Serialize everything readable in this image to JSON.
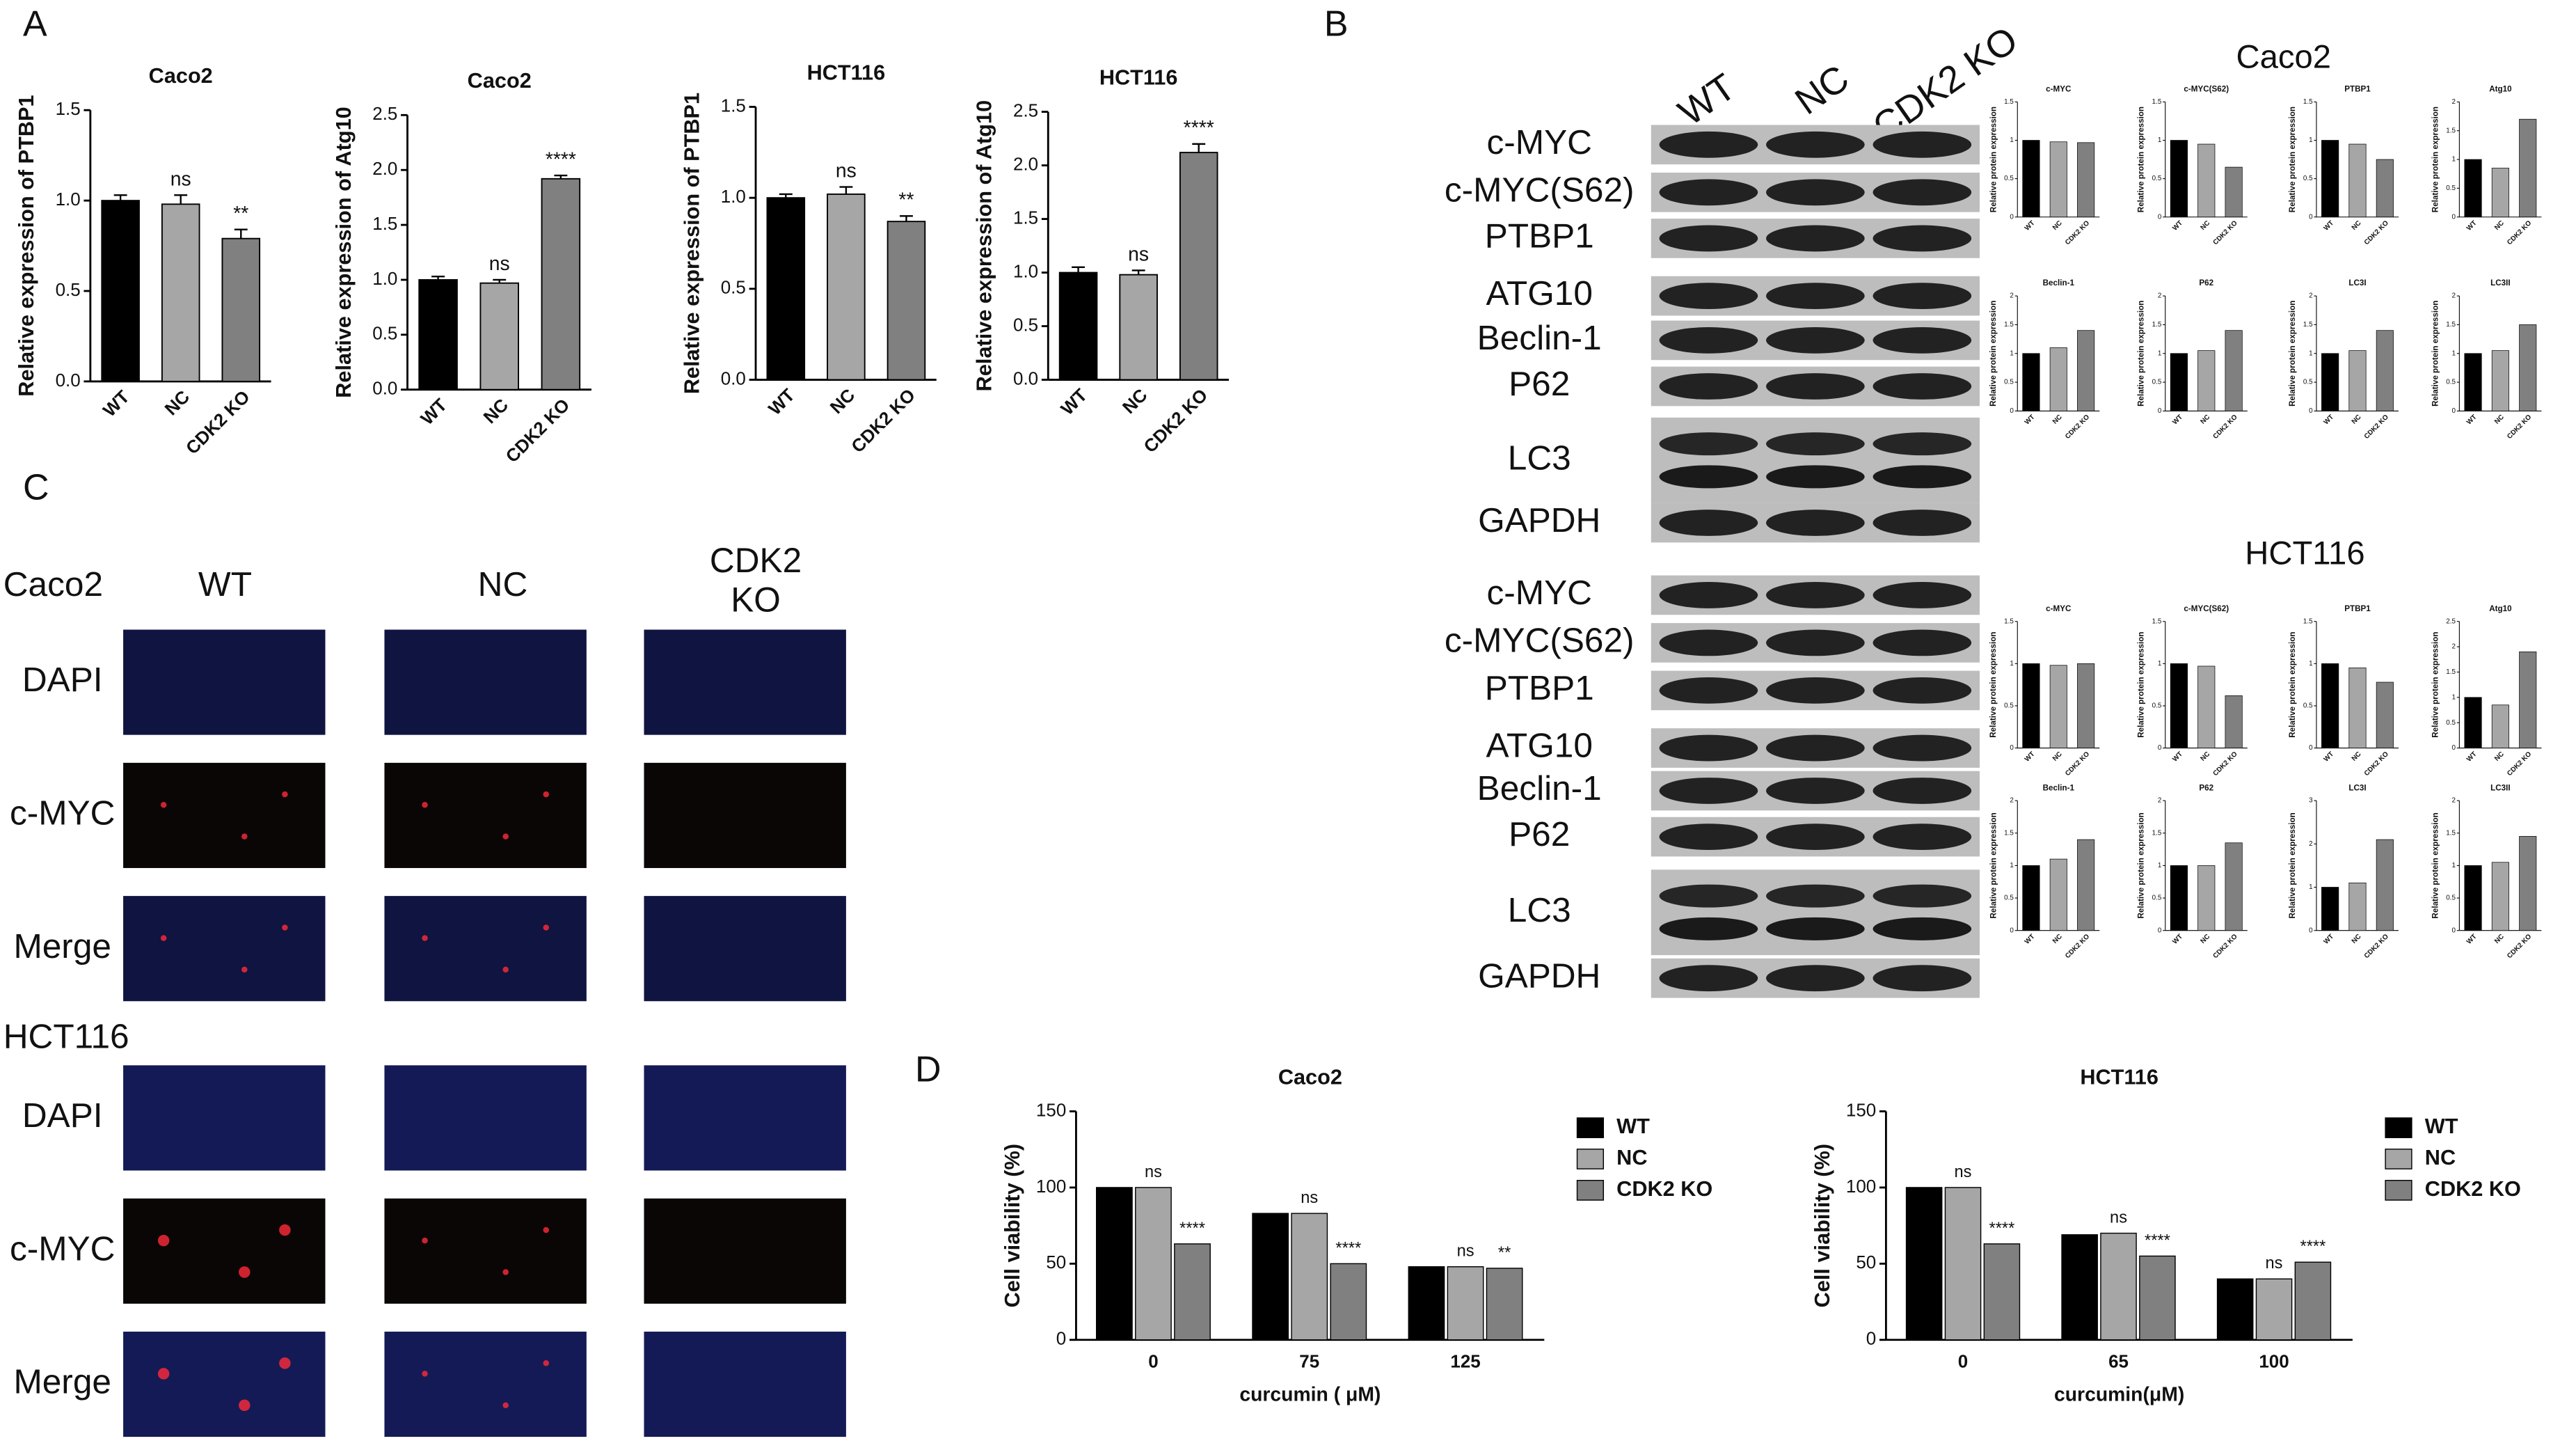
{
  "panel_labels": [
    "A",
    "B",
    "C",
    "D"
  ],
  "chart_data": [
    {
      "type": "bar",
      "title": "Caco2",
      "y_label": "Relative expression of PTBP1",
      "categories": [
        "WT",
        "NC",
        "CDK2 KO"
      ],
      "values": [
        1.0,
        0.98,
        0.79
      ],
      "errors": [
        0.03,
        0.05,
        0.05
      ],
      "annotations": [
        null,
        "ns",
        "**"
      ],
      "colors": [
        "#000000",
        "#a6a6a6",
        "#808080"
      ],
      "ylim": [
        0,
        1.5
      ],
      "yticks": [
        {
          "value": 0,
          "label": "0.0"
        },
        0.5,
        {
          "value": 1,
          "label": "1.0"
        },
        1.5
      ]
    },
    {
      "type": "bar",
      "title": "Caco2",
      "y_label": "Relative expression of Atg10",
      "categories": [
        "WT",
        "NC",
        "CDK2 KO"
      ],
      "values": [
        1.0,
        0.97,
        1.92
      ],
      "errors": [
        0.03,
        0.03,
        0.03
      ],
      "annotations": [
        null,
        "ns",
        "****"
      ],
      "colors": [
        "#000000",
        "#a6a6a6",
        "#808080"
      ],
      "ylim": [
        0,
        2.5
      ],
      "yticks": [
        {
          "value": 0,
          "label": "0.0"
        },
        0.5,
        {
          "value": 1,
          "label": "1.0"
        },
        1.5,
        {
          "value": 2,
          "label": "2.0"
        },
        2.5
      ]
    },
    {
      "type": "bar",
      "title": "HCT116",
      "y_label": "Relative expression of PTBP1",
      "categories": [
        "WT",
        "NC",
        "CDK2 KO"
      ],
      "values": [
        1.0,
        1.02,
        0.87
      ],
      "errors": [
        0.02,
        0.04,
        0.03
      ],
      "annotations": [
        null,
        "ns",
        "**"
      ],
      "colors": [
        "#000000",
        "#a6a6a6",
        "#808080"
      ],
      "ylim": [
        0,
        1.5
      ],
      "yticks": [
        {
          "value": 0,
          "label": "0.0"
        },
        0.5,
        {
          "value": 1,
          "label": "1.0"
        },
        1.5
      ]
    },
    {
      "type": "bar",
      "title": "HCT116",
      "y_label": "Relative expression of Atg10",
      "categories": [
        "WT",
        "NC",
        "CDK2 KO"
      ],
      "values": [
        1.0,
        0.98,
        2.12
      ],
      "errors": [
        0.05,
        0.04,
        0.08
      ],
      "annotations": [
        null,
        "ns",
        "****"
      ],
      "colors": [
        "#000000",
        "#a6a6a6",
        "#808080"
      ],
      "ylim": [
        0,
        2.5
      ],
      "yticks": [
        {
          "value": 0,
          "label": "0.0"
        },
        0.5,
        {
          "value": 1,
          "label": "1.0"
        },
        1.5,
        {
          "value": 2,
          "label": "2.0"
        },
        2.5
      ]
    },
    {
      "type": "bar",
      "title": "Caco2",
      "y_label": "Cell viability (%)",
      "x_label": "curcumin ( μM)",
      "categories": [
        "0",
        "75",
        "125"
      ],
      "legend": "right",
      "series": [
        {
          "name": "WT",
          "color": "#000000",
          "values": [
            100,
            83,
            48
          ]
        },
        {
          "name": "NC",
          "color": "#a6a6a6",
          "values": [
            100,
            83,
            48
          ],
          "annotations": [
            "ns",
            "ns",
            "ns"
          ]
        },
        {
          "name": "CDK2 KO",
          "color": "#808080",
          "values": [
            63,
            50,
            47
          ],
          "annotations": [
            "****",
            "****",
            "**"
          ]
        }
      ],
      "ylim": [
        0,
        150
      ],
      "yticks": [
        0,
        50,
        100,
        150
      ]
    },
    {
      "type": "bar",
      "title": "HCT116",
      "y_label": "Cell viability (%)",
      "x_label": "curcumin(μM)",
      "categories": [
        "0",
        "65",
        "100"
      ],
      "legend": "right",
      "series": [
        {
          "name": "WT",
          "color": "#000000",
          "values": [
            100,
            69,
            40
          ]
        },
        {
          "name": "NC",
          "color": "#a6a6a6",
          "values": [
            100,
            70,
            40
          ],
          "annotations": [
            "ns",
            "ns",
            "ns"
          ]
        },
        {
          "name": "CDK2 KO",
          "color": "#808080",
          "values": [
            63,
            55,
            51
          ],
          "annotations": [
            "****",
            "****",
            "****"
          ]
        }
      ],
      "ylim": [
        0,
        150
      ],
      "yticks": [
        0,
        50,
        100,
        150
      ]
    },
    {
      "type": "bar",
      "title": "c-MYC",
      "y_label": "Relative protein expression",
      "categories": [
        "WT",
        "NC",
        "CDK2 KO"
      ],
      "values": [
        1.0,
        0.98,
        0.97
      ],
      "colors": [
        "#000000",
        "#a6a6a6",
        "#808080"
      ],
      "ylim": [
        0,
        1.5
      ],
      "yticks": [
        0,
        0.5,
        1,
        1.5
      ]
    },
    {
      "type": "bar",
      "title": "c-MYC(S62)",
      "y_label": "Relative protein expression",
      "categories": [
        "WT",
        "NC",
        "CDK2 KO"
      ],
      "values": [
        1.0,
        0.95,
        0.65
      ],
      "colors": [
        "#000000",
        "#a6a6a6",
        "#808080"
      ],
      "ylim": [
        0,
        1.5
      ],
      "yticks": [
        0,
        0.5,
        1,
        1.5
      ]
    },
    {
      "type": "bar",
      "title": "PTBP1",
      "y_label": "Relative protein expression",
      "categories": [
        "WT",
        "NC",
        "CDK2 KO"
      ],
      "values": [
        1.0,
        0.95,
        0.75
      ],
      "colors": [
        "#000000",
        "#a6a6a6",
        "#808080"
      ],
      "ylim": [
        0,
        1.5
      ],
      "yticks": [
        0,
        0.5,
        1,
        1.5
      ]
    },
    {
      "type": "bar",
      "title": "Atg10",
      "y_label": "Relative protein expression",
      "categories": [
        "WT",
        "NC",
        "CDK2 KO"
      ],
      "values": [
        1.0,
        0.85,
        1.7
      ],
      "colors": [
        "#000000",
        "#a6a6a6",
        "#808080"
      ],
      "ylim": [
        0,
        2
      ],
      "yticks": [
        0,
        0.5,
        1,
        1.5,
        2
      ]
    },
    {
      "type": "bar",
      "title": "Beclin-1",
      "y_label": "Relative protein expression",
      "categories": [
        "WT",
        "NC",
        "CDK2 KO"
      ],
      "values": [
        1.0,
        1.1,
        1.4
      ],
      "colors": [
        "#000000",
        "#a6a6a6",
        "#808080"
      ],
      "ylim": [
        0,
        2
      ],
      "yticks": [
        0,
        0.5,
        1,
        1.5,
        2
      ]
    },
    {
      "type": "bar",
      "title": "P62",
      "y_label": "Relative protein expression",
      "categories": [
        "WT",
        "NC",
        "CDK2 KO"
      ],
      "values": [
        1.0,
        1.05,
        1.4
      ],
      "colors": [
        "#000000",
        "#a6a6a6",
        "#808080"
      ],
      "ylim": [
        0,
        2
      ],
      "yticks": [
        0,
        0.5,
        1,
        1.5,
        2
      ]
    },
    {
      "type": "bar",
      "title": "LC3I",
      "y_label": "Relative protein expression",
      "categories": [
        "WT",
        "NC",
        "CDK2 KO"
      ],
      "values": [
        1.0,
        1.05,
        1.4
      ],
      "colors": [
        "#000000",
        "#a6a6a6",
        "#808080"
      ],
      "ylim": [
        0,
        2
      ],
      "yticks": [
        0,
        0.5,
        1,
        1.5,
        2
      ]
    },
    {
      "type": "bar",
      "title": "LC3II",
      "y_label": "Relative protein expression",
      "categories": [
        "WT",
        "NC",
        "CDK2 KO"
      ],
      "values": [
        1.0,
        1.05,
        1.5
      ],
      "colors": [
        "#000000",
        "#a6a6a6",
        "#808080"
      ],
      "ylim": [
        0,
        2
      ],
      "yticks": [
        0,
        0.5,
        1,
        1.5,
        2
      ]
    },
    {
      "type": "bar",
      "title": "c-MYC",
      "y_label": "Relative protein expression",
      "categories": [
        "WT",
        "NC",
        "CDK2 KO"
      ],
      "values": [
        1.0,
        0.98,
        1.0
      ],
      "colors": [
        "#000000",
        "#a6a6a6",
        "#808080"
      ],
      "ylim": [
        0,
        1.5
      ],
      "yticks": [
        0,
        0.5,
        1,
        1.5
      ]
    },
    {
      "type": "bar",
      "title": "c-MYC(S62)",
      "y_label": "Relative protein expression",
      "categories": [
        "WT",
        "NC",
        "CDK2 KO"
      ],
      "values": [
        1.0,
        0.97,
        0.62
      ],
      "colors": [
        "#000000",
        "#a6a6a6",
        "#808080"
      ],
      "ylim": [
        0,
        1.5
      ],
      "yticks": [
        0,
        0.5,
        1,
        1.5
      ]
    },
    {
      "type": "bar",
      "title": "PTBP1",
      "y_label": "Relative protein expression",
      "categories": [
        "WT",
        "NC",
        "CDK2 KO"
      ],
      "values": [
        1.0,
        0.95,
        0.78
      ],
      "colors": [
        "#000000",
        "#a6a6a6",
        "#808080"
      ],
      "ylim": [
        0,
        1.5
      ],
      "yticks": [
        0,
        0.5,
        1,
        1.5
      ]
    },
    {
      "type": "bar",
      "title": "Atg10",
      "y_label": "Relative protein expression",
      "categories": [
        "WT",
        "NC",
        "CDK2 KO"
      ],
      "values": [
        1.0,
        0.85,
        1.9
      ],
      "colors": [
        "#000000",
        "#a6a6a6",
        "#808080"
      ],
      "ylim": [
        0,
        2.5
      ],
      "yticks": [
        0,
        0.5,
        1,
        1.5,
        2,
        2.5
      ]
    },
    {
      "type": "bar",
      "title": "Beclin-1",
      "y_label": "Relative protein expression",
      "categories": [
        "WT",
        "NC",
        "CDK2 KO"
      ],
      "values": [
        1.0,
        1.1,
        1.4
      ],
      "colors": [
        "#000000",
        "#a6a6a6",
        "#808080"
      ],
      "ylim": [
        0,
        2
      ],
      "yticks": [
        0,
        0.5,
        1,
        1.5,
        2
      ]
    },
    {
      "type": "bar",
      "title": "P62",
      "y_label": "Relative protein expression",
      "categories": [
        "WT",
        "NC",
        "CDK2 KO"
      ],
      "values": [
        1.0,
        1.0,
        1.35
      ],
      "colors": [
        "#000000",
        "#a6a6a6",
        "#808080"
      ],
      "ylim": [
        0,
        2
      ],
      "yticks": [
        0,
        0.5,
        1,
        1.5,
        2
      ]
    },
    {
      "type": "bar",
      "title": "LC3I",
      "y_label": "Relative protein expression",
      "categories": [
        "WT",
        "NC",
        "CDK2 KO"
      ],
      "values": [
        1.0,
        1.1,
        2.1
      ],
      "colors": [
        "#000000",
        "#a6a6a6",
        "#808080"
      ],
      "ylim": [
        0,
        3
      ],
      "yticks": [
        0,
        1,
        2,
        3
      ]
    },
    {
      "type": "bar",
      "title": "LC3II",
      "y_label": "Relative protein expression",
      "categories": [
        "WT",
        "NC",
        "CDK2 KO"
      ],
      "values": [
        1.0,
        1.05,
        1.45
      ],
      "colors": [
        "#000000",
        "#a6a6a6",
        "#808080"
      ],
      "ylim": [
        0,
        2
      ],
      "yticks": [
        0,
        0.5,
        1,
        1.5,
        2
      ]
    }
  ],
  "blots": {
    "columns": [
      "WT",
      "NC",
      "CDK2 KO"
    ],
    "sections": [
      {
        "title": "Caco2",
        "rows": [
          "c-MYC",
          "c-MYC(S62)",
          "PTBP1",
          "ATG10",
          "Beclin-1",
          "P62",
          "LC3",
          "GAPDH"
        ]
      },
      {
        "title": "HCT116",
        "rows": [
          "c-MYC",
          "c-MYC(S62)",
          "PTBP1",
          "ATG10",
          "Beclin-1",
          "P62",
          "LC3",
          "GAPDH"
        ]
      }
    ]
  },
  "if_panel": {
    "columns": [
      "WT",
      "NC",
      "CDK2 KO"
    ],
    "groups": [
      {
        "name": "Caco2",
        "rows": [
          "DAPI",
          "c-MYC",
          "Merge"
        ]
      },
      {
        "name": "HCT116",
        "rows": [
          "DAPI",
          "c-MYC",
          "Merge"
        ]
      }
    ]
  }
}
